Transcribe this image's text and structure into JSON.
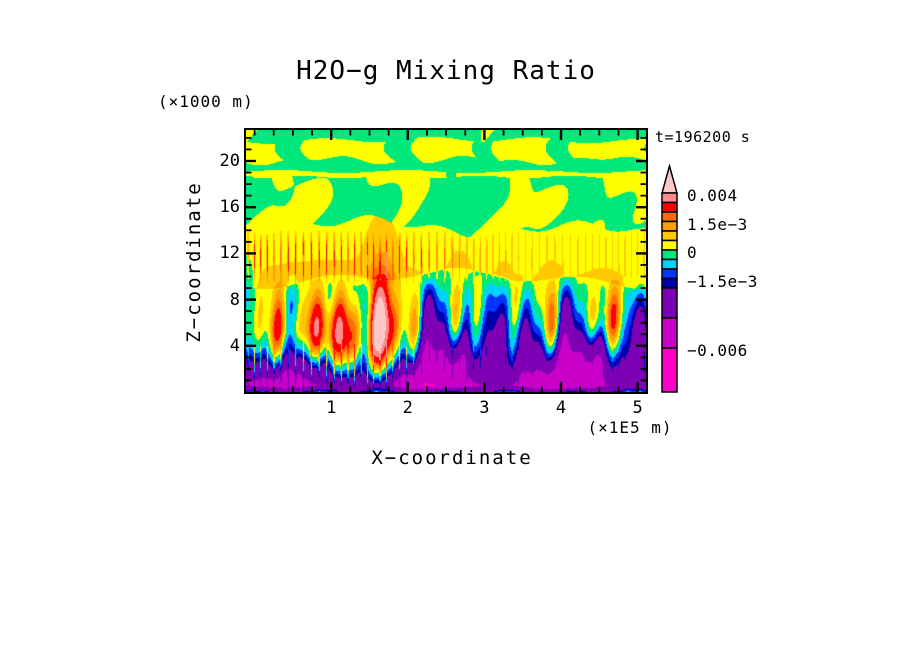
{
  "page": {
    "background": "#FFFFFF",
    "frame_color": "#000000"
  },
  "chart_data": {
    "type": "filled-contour",
    "title": "H2O−g Mixing Ratio",
    "timestamp": "t=196200 s",
    "x_axis": {
      "label": "X−coordinate",
      "units": "(×1E5 m)",
      "major_ticks": [
        1,
        2,
        3,
        4,
        5
      ],
      "minor_step": 0.25,
      "range": [
        0,
        5.1
      ]
    },
    "z_axis": {
      "label": "Z−coordinate",
      "units": "(×1000 m)",
      "major_ticks": [
        4,
        8,
        12,
        16,
        20
      ],
      "minor_step": 1,
      "range": [
        0,
        22.7
      ]
    },
    "colorbar": {
      "levels": [
        -0.006,
        -0.004,
        -0.002,
        -0.0015,
        -0.001,
        -0.0005,
        0,
        0.0005,
        0.001,
        0.0015,
        0.002,
        0.003,
        0.004
      ],
      "colors_ascending": [
        "#FF00C8",
        "#C800C8",
        "#7D00B4",
        "#0000AA",
        "#0034FF",
        "#00D2FF",
        "#00E87C",
        "#FFFF00",
        "#FFC800",
        "#FFA000",
        "#FF6E00",
        "#FF0000",
        "#FF8C8C",
        "#FFC8C8"
      ],
      "labels": [
        {
          "text": "0.004",
          "level": 0.004
        },
        {
          "text": "1.5e−3",
          "level": 0.0015
        },
        {
          "text": "0",
          "level": 0
        },
        {
          "text": "−1.5e−3",
          "level": -0.0015
        },
        {
          "text": "−0.006",
          "level": -0.006
        }
      ]
    },
    "features": [
      "z about 20-22 km: thin alternating yellow/green horizontal layers, values near 0 (between -0.0005 and 0.0005)",
      "z about 14-19 km: green background (-0.0005 to 0) with scattered yellow patches (0 to 0.0005)",
      "z about 9-14 km: continuous yellow layer (0 to 0.0005)",
      "z about 5-9 km: green/cyan/blue transition (-0.0015 to -0.0005) with convective finger structures",
      "z about 0-5 km: purple and magenta region (-0.006 to -0.002) with blue streaks and patches below -0.006",
      "warm anomaly near x 0.5-1.7 (x1E5 m), z 2-6 km, reaching 0.002-0.003 (orange/red core)",
      "narrow warm updraft plumes near x 1.65, 2.7, 3.3, 3.9, 4.5 (x1E5 m) reaching about 0.002",
      "thin cyan/blue dashes along the bottom boundary (about -0.001)"
    ]
  }
}
